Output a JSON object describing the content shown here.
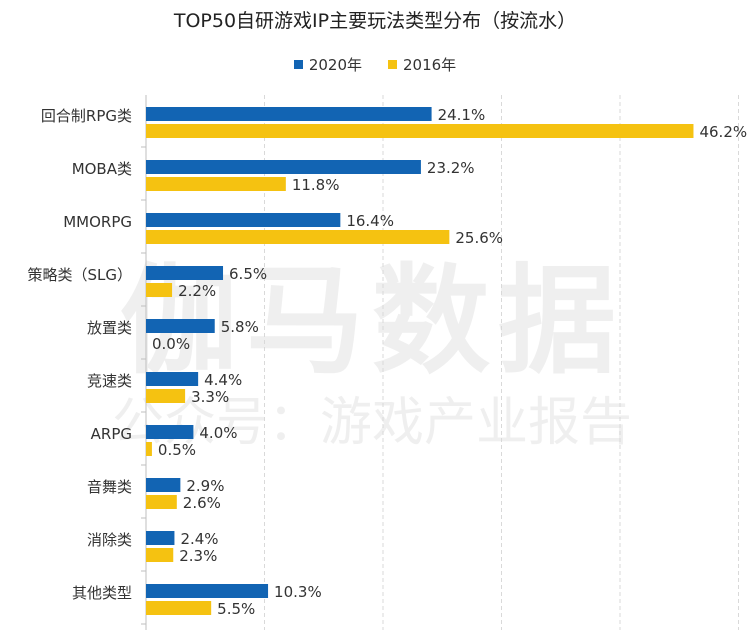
{
  "title": "TOP50自研游戏IP主要玩法类型分布（按流水）",
  "legend": [
    "2020年",
    "2016年"
  ],
  "colors": {
    "s2020": "#1264b3",
    "s2016": "#f5c211",
    "grid": "#d9d9d9",
    "axis": "#bfbfbf",
    "text": "#333333"
  },
  "watermark": {
    "main": "伽马数据",
    "sub": "公众号：游戏产业报告"
  },
  "chart_data": {
    "type": "bar",
    "orientation": "horizontal",
    "title": "TOP50自研游戏IP主要玩法类型分布（按流水）",
    "categories": [
      "回合制RPG类",
      "MOBA类",
      "MMORPG",
      "策略类（SLG）",
      "放置类",
      "竞速类",
      "ARPG",
      "音舞类",
      "消除类",
      "其他类型"
    ],
    "series": [
      {
        "name": "2020年",
        "values": [
          24.1,
          23.2,
          16.4,
          6.5,
          5.8,
          4.4,
          4.0,
          2.9,
          2.4,
          10.3
        ],
        "labels": [
          "24.1%",
          "23.2%",
          "16.4%",
          "6.5%",
          "5.8%",
          "4.4%",
          "4.0%",
          "2.9%",
          "2.4%",
          "10.3%"
        ]
      },
      {
        "name": "2016年",
        "values": [
          46.2,
          11.8,
          25.6,
          2.2,
          0.0,
          3.3,
          0.5,
          2.6,
          2.3,
          5.5
        ],
        "labels": [
          "46.2%",
          "11.8%",
          "25.6%",
          "2.2%",
          "0.0%",
          "3.3%",
          "0.5%",
          "2.6%",
          "2.3%",
          "5.5%"
        ]
      }
    ],
    "xlim": [
      0,
      50
    ],
    "grid": true,
    "legend_position": "top"
  }
}
